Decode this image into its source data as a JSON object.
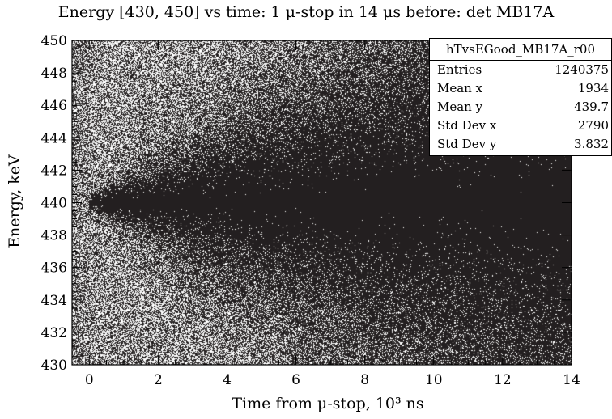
{
  "chart_data": {
    "type": "heatmap",
    "title": "Energy [430, 450] vs time: 1 μ-stop in 14 μs before: det MB17A",
    "xlabel": "Time from μ-stop, 10³ ns",
    "ylabel": "Energy, keV",
    "xlim": [
      -0.5,
      14
    ],
    "ylim": [
      430,
      450
    ],
    "x_ticks": [
      "0",
      "2",
      "4",
      "6",
      "8",
      "10",
      "12",
      "14"
    ],
    "y_ticks": [
      "430",
      "432",
      "434",
      "436",
      "438",
      "440",
      "442",
      "444",
      "446",
      "448",
      "450"
    ],
    "peak_energy": 440,
    "colors": {
      "dense": "#231f20",
      "background": "#ffffff",
      "axis": "#000000"
    },
    "stats": {
      "name": "hTvsEGood_MB17A_r00",
      "rows": [
        {
          "label": "Entries",
          "value": "1240375"
        },
        {
          "label": "Mean x",
          "value": "1934"
        },
        {
          "label": "Mean y",
          "value": "439.7"
        },
        {
          "label": "Std Dev x",
          "value": "2790"
        },
        {
          "label": "Std Dev y",
          "value": "3.832"
        }
      ]
    }
  }
}
